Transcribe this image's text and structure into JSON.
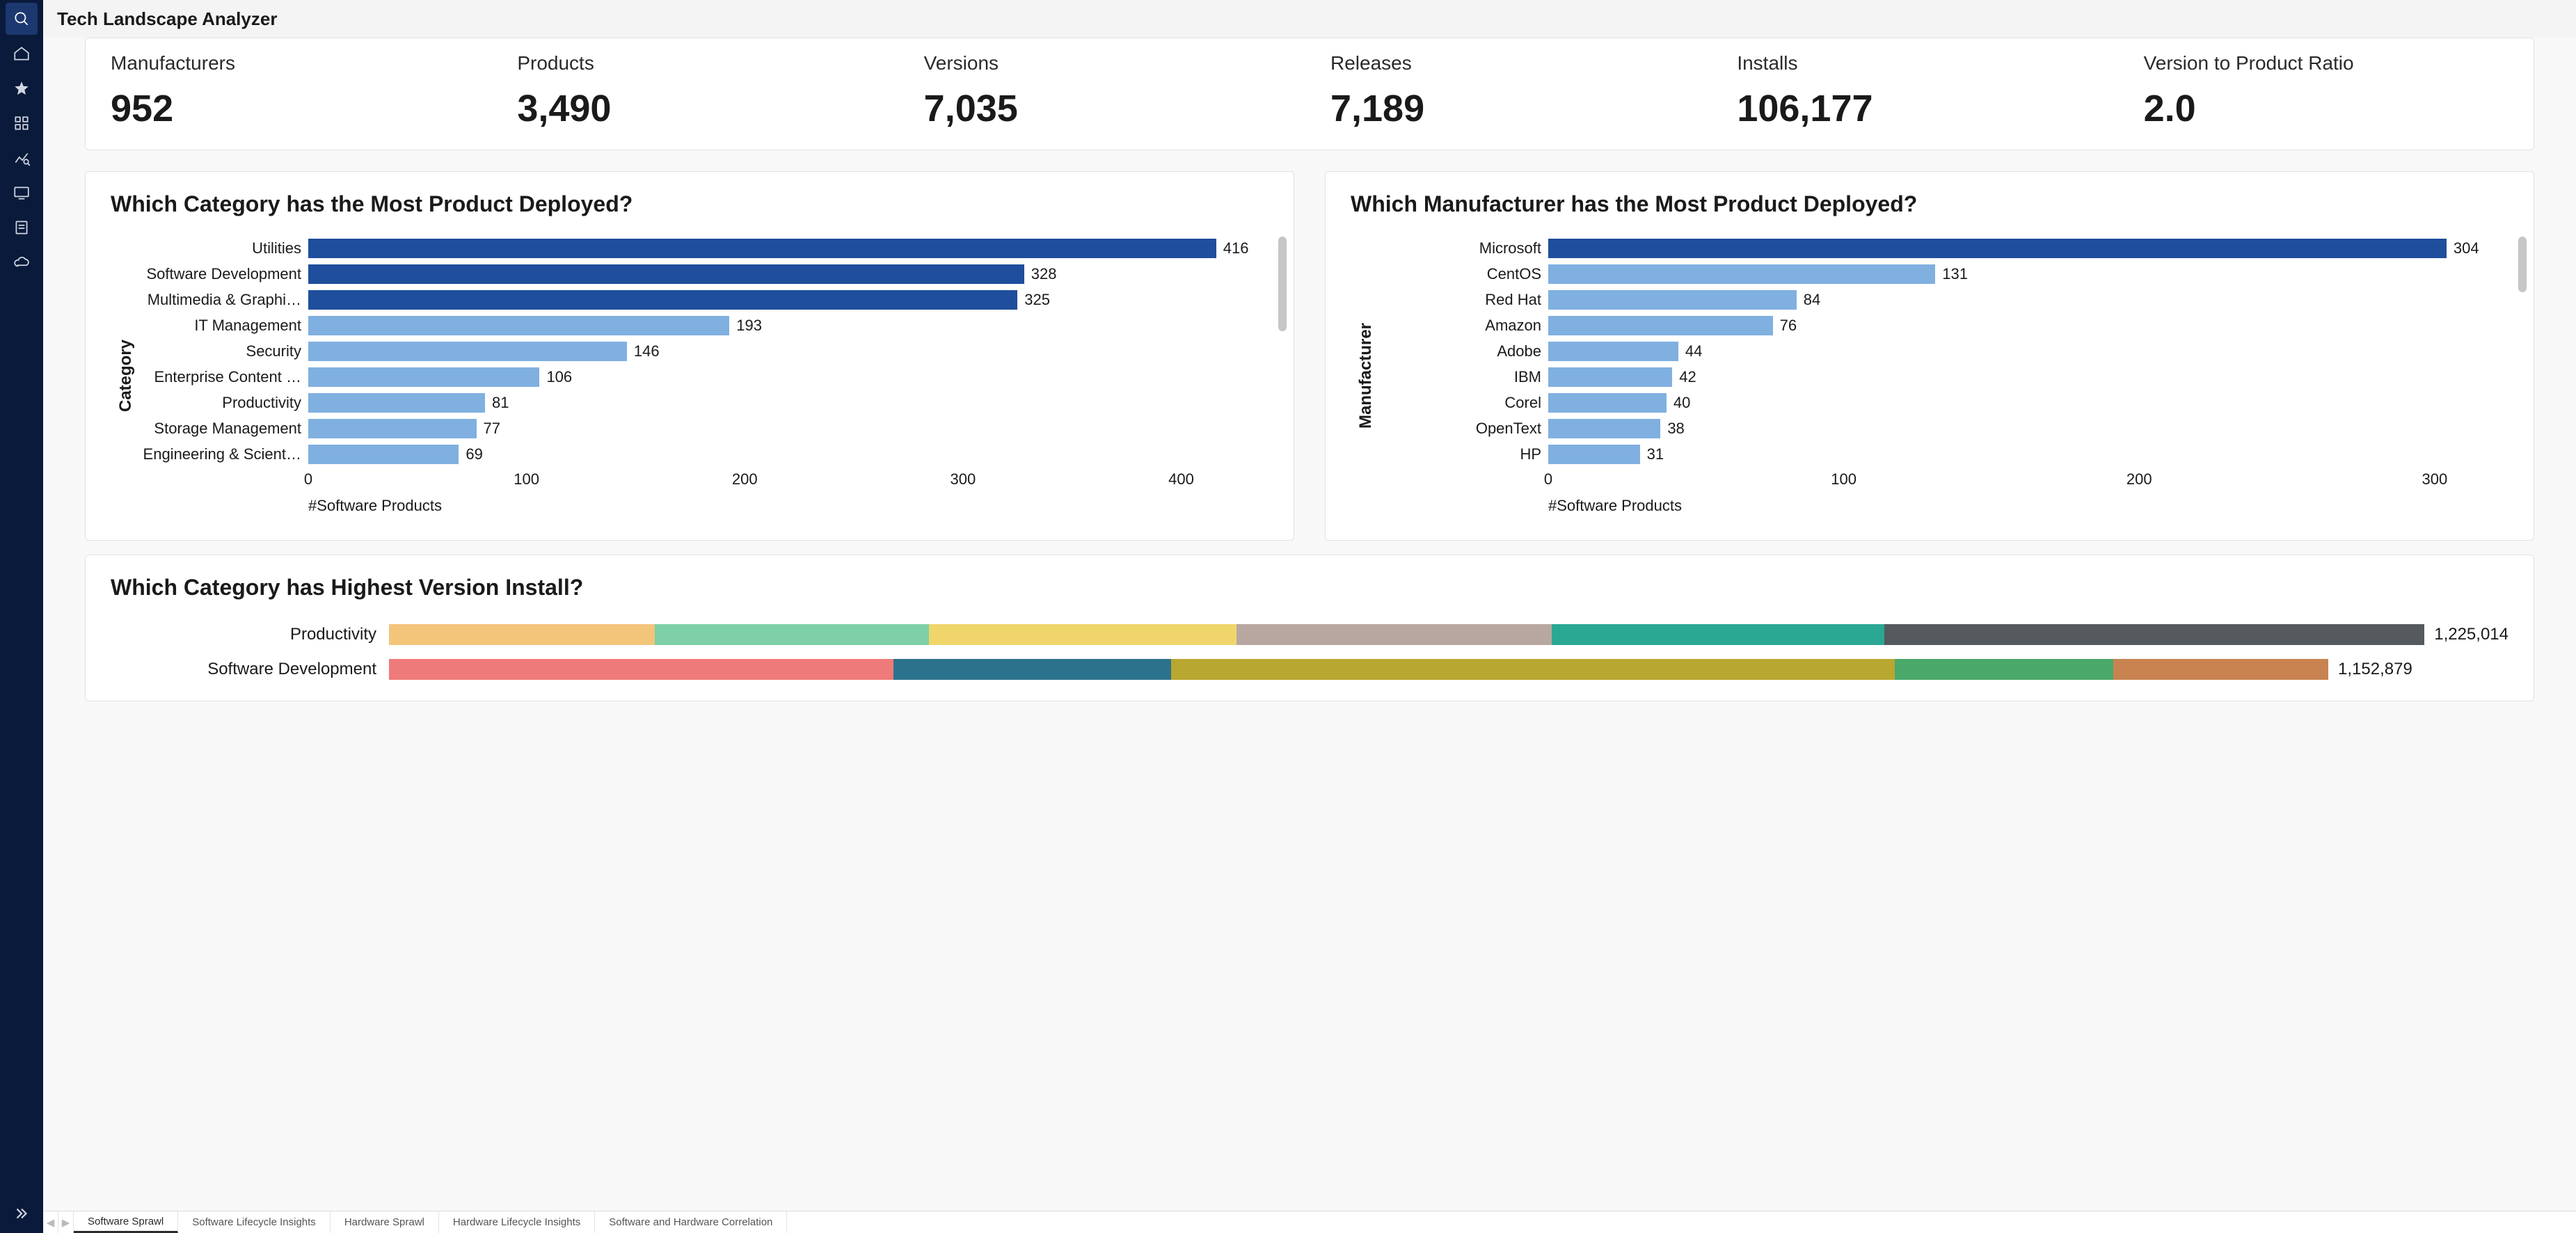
{
  "app_title": "Tech Landscape Analyzer",
  "nav_rail": {
    "icons": [
      {
        "name": "search-icon",
        "active": true
      },
      {
        "name": "home-icon",
        "active": false
      },
      {
        "name": "star-icon",
        "active": false
      },
      {
        "name": "apps-icon",
        "active": false
      },
      {
        "name": "analytics-icon",
        "active": false
      },
      {
        "name": "device-icon",
        "active": false
      },
      {
        "name": "note-icon",
        "active": false
      },
      {
        "name": "cloud-icon",
        "active": false
      }
    ],
    "expand_name": "expand-icon"
  },
  "metrics": [
    {
      "label": "Manufacturers",
      "value": "952"
    },
    {
      "label": "Products",
      "value": "3,490"
    },
    {
      "label": "Versions",
      "value": "7,035"
    },
    {
      "label": "Releases",
      "value": "7,189"
    },
    {
      "label": "Installs",
      "value": "106,177"
    },
    {
      "label": "Version to Product Ratio",
      "value": "2.0"
    }
  ],
  "category_chart": {
    "title": "Which Category has the Most Product Deployed?",
    "y_axis_title": "Category",
    "x_axis_title": "#Software Products",
    "type": "bar-horizontal",
    "x_max": 440,
    "x_ticks": [
      0,
      100,
      200,
      300,
      400
    ],
    "bar_colors_top3": "#1f4e9c",
    "bar_color_rest": "#7fb0e0",
    "label_fontsize": 22,
    "background_color": "#ffffff",
    "rows": [
      {
        "label": "Utilities",
        "value": 416
      },
      {
        "label": "Software Development",
        "value": 328
      },
      {
        "label": "Multimedia & Graphi…",
        "value": 325
      },
      {
        "label": "IT Management",
        "value": 193
      },
      {
        "label": "Security",
        "value": 146
      },
      {
        "label": "Enterprise Content …",
        "value": 106
      },
      {
        "label": "Productivity",
        "value": 81
      },
      {
        "label": "Storage Management",
        "value": 77
      },
      {
        "label": "Engineering & Scient…",
        "value": 69
      }
    ]
  },
  "manufacturer_chart": {
    "title": "Which Manufacturer has the Most Product Deployed?",
    "y_axis_title": "Manufacturer",
    "x_axis_title": "#Software Products",
    "type": "bar-horizontal",
    "x_max": 325,
    "x_ticks": [
      0,
      100,
      200,
      300
    ],
    "bar_colors_top1": "#1f4e9c",
    "bar_color_rest": "#7fb0e0",
    "label_fontsize": 22,
    "background_color": "#ffffff",
    "rows": [
      {
        "label": "Microsoft",
        "value": 304
      },
      {
        "label": "CentOS",
        "value": 131
      },
      {
        "label": "Red Hat",
        "value": 84
      },
      {
        "label": "Amazon",
        "value": 76
      },
      {
        "label": "Adobe",
        "value": 44
      },
      {
        "label": "IBM",
        "value": 42
      },
      {
        "label": "Corel",
        "value": 40
      },
      {
        "label": "OpenText",
        "value": 38
      },
      {
        "label": "HP",
        "value": 31
      }
    ]
  },
  "version_install_chart": {
    "title": "Which Category has Highest Version Install?",
    "type": "bar-horizontal-stacked",
    "max_value": 1260000,
    "label_fontsize": 24,
    "background_color": "#ffffff",
    "rows": [
      {
        "label": "Productivity",
        "total_label": "1,225,014",
        "total": 1225014,
        "segments": [
          {
            "color": "#f3c57b",
            "value": 160000
          },
          {
            "color": "#7dd0a8",
            "value": 165000
          },
          {
            "color": "#f0d66a",
            "value": 185000
          },
          {
            "color": "#b8a7a1",
            "value": 190000
          },
          {
            "color": "#2aa893",
            "value": 200000
          },
          {
            "color": "#555a5e",
            "value": 325014
          }
        ]
      },
      {
        "label": "Software Development",
        "total_label": "1,152,879",
        "total": 1152879,
        "segments": [
          {
            "color": "#ef7a7a",
            "value": 300000
          },
          {
            "color": "#2b738c",
            "value": 165000
          },
          {
            "color": "#b8a731",
            "value": 430000
          },
          {
            "color": "#4aa86a",
            "value": 130000
          },
          {
            "color": "#c88350",
            "value": 127879
          }
        ]
      }
    ]
  },
  "sheet_tabs": {
    "items": [
      {
        "label": "Software Sprawl",
        "active": true
      },
      {
        "label": "Software Lifecycle Insights",
        "active": false
      },
      {
        "label": "Hardware Sprawl",
        "active": false
      },
      {
        "label": "Hardware Lifecycle Insights",
        "active": false
      },
      {
        "label": "Software and Hardware Correlation",
        "active": false
      }
    ]
  }
}
